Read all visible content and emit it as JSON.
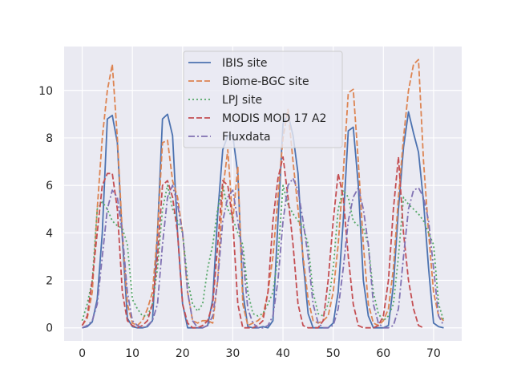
{
  "chart_data": {
    "type": "line",
    "title": "",
    "xlabel": "",
    "ylabel": "",
    "xlim": [
      -3.6,
      75.6
    ],
    "ylim": [
      -0.55,
      11.85
    ],
    "xticks": [
      0,
      10,
      20,
      30,
      40,
      50,
      60,
      70
    ],
    "yticks": [
      0,
      2,
      4,
      6,
      8,
      10
    ],
    "grid": true,
    "legend_position": "top-center",
    "background": "#eaeaf2",
    "series": [
      {
        "name": "IBIS site",
        "color": "#4c72b0",
        "dash": "solid",
        "x": [
          0,
          1,
          2,
          3,
          4,
          5,
          6,
          7,
          8,
          9,
          10,
          11,
          12,
          13,
          14,
          15,
          16,
          17,
          18,
          19,
          20,
          21,
          22,
          23,
          24,
          25,
          26,
          27,
          28,
          29,
          30,
          31,
          32,
          33,
          34,
          35,
          36,
          37,
          38,
          39,
          40,
          41,
          42,
          43,
          44,
          45,
          46,
          47,
          48,
          49,
          50,
          51,
          52,
          53,
          54,
          55,
          56,
          57,
          58,
          59,
          60,
          61,
          62,
          63,
          64,
          65,
          66,
          67,
          68,
          69,
          70,
          71,
          72
        ],
        "y": [
          0,
          0.05,
          0.25,
          1.2,
          4.0,
          8.8,
          8.95,
          7.8,
          3.8,
          0.4,
          0.05,
          0,
          0,
          0.05,
          0.3,
          4.0,
          8.8,
          9.0,
          8.1,
          4.0,
          1.0,
          0,
          0,
          0,
          0,
          0.1,
          1.2,
          4.8,
          7.5,
          8.1,
          8.1,
          6.5,
          1.5,
          0.05,
          0,
          0,
          0.05,
          0,
          0.3,
          4.5,
          8.6,
          9.0,
          8.1,
          6.5,
          2.8,
          0.6,
          0,
          0,
          0,
          0,
          0.2,
          1.5,
          4.5,
          8.3,
          8.45,
          6.0,
          2.0,
          0.5,
          0,
          0,
          0,
          0.1,
          1.8,
          5.0,
          7.6,
          9.1,
          8.2,
          7.4,
          5.3,
          2.5,
          0.2,
          0.05,
          0
        ]
      },
      {
        "name": "Biome-BGC site",
        "color": "#dd8452",
        "dash": "dashed",
        "x": [
          0,
          1,
          2,
          3,
          4,
          5,
          6,
          7,
          8,
          9,
          10,
          11,
          12,
          13,
          14,
          15,
          16,
          17,
          18,
          19,
          20,
          21,
          22,
          23,
          24,
          25,
          26,
          27,
          28,
          29,
          30,
          31,
          32,
          33,
          34,
          35,
          36,
          37,
          38,
          39,
          40,
          41,
          42,
          43,
          44,
          45,
          46,
          47,
          48,
          49,
          50,
          51,
          52,
          53,
          54,
          55,
          56,
          57,
          58,
          59,
          60,
          61,
          62,
          63,
          64,
          65,
          66,
          67,
          68,
          69,
          70,
          71,
          72
        ],
        "y": [
          0.1,
          0.4,
          1.5,
          5.0,
          8.0,
          10.0,
          11.1,
          8.0,
          4.0,
          1.0,
          0.2,
          0.1,
          0.3,
          0.8,
          1.5,
          4.0,
          7.8,
          7.9,
          6.2,
          5.5,
          4.0,
          1.5,
          0.3,
          0.2,
          0.3,
          0.3,
          0.2,
          2.0,
          5.8,
          7.5,
          4.5,
          6.8,
          1.0,
          0.1,
          0.2,
          0.3,
          0.5,
          1.5,
          3.0,
          5.5,
          8.0,
          9.2,
          7.0,
          5.0,
          3.0,
          1.2,
          0.3,
          0.2,
          0.3,
          0.5,
          1.5,
          3.5,
          6.5,
          9.9,
          10.05,
          7.0,
          3.5,
          1.0,
          0.2,
          0.1,
          0.3,
          0.8,
          2.5,
          5.5,
          8.0,
          10.0,
          11.1,
          11.3,
          7.0,
          4.0,
          1.5,
          0.5,
          0.3
        ]
      },
      {
        "name": "LPJ site",
        "color": "#55a868",
        "dash": "dotted",
        "x": [
          0,
          1,
          2,
          3,
          4,
          5,
          6,
          7,
          8,
          9,
          10,
          11,
          12,
          13,
          14,
          15,
          16,
          17,
          18,
          19,
          20,
          21,
          22,
          23,
          24,
          25,
          26,
          27,
          28,
          29,
          30,
          31,
          32,
          33,
          34,
          35,
          36,
          37,
          38,
          39,
          40,
          41,
          42,
          43,
          44,
          45,
          46,
          47,
          48,
          49,
          50,
          51,
          52,
          53,
          54,
          55,
          56,
          57,
          58,
          59,
          60,
          61,
          62,
          63,
          64,
          65,
          66,
          67,
          68,
          69,
          70,
          71,
          72
        ],
        "y": [
          0.3,
          1.0,
          2.0,
          5.0,
          5.3,
          5.0,
          4.5,
          4.3,
          4.2,
          3.5,
          1.2,
          0.8,
          0.5,
          0.5,
          1.0,
          2.5,
          5.0,
          6.0,
          5.0,
          4.5,
          4.0,
          2.0,
          1.0,
          0.7,
          1.0,
          2.5,
          3.5,
          5.0,
          6.0,
          5.0,
          4.6,
          4.0,
          3.5,
          1.5,
          0.6,
          0.5,
          0.6,
          1.0,
          1.5,
          3.0,
          6.0,
          5.2,
          4.8,
          4.5,
          4.3,
          3.5,
          1.5,
          0.6,
          0.5,
          1.0,
          2.5,
          5.0,
          5.8,
          5.5,
          4.5,
          4.3,
          4.2,
          3.5,
          1.5,
          0.6,
          0.3,
          0.5,
          1.0,
          3.0,
          5.5,
          5.2,
          5.0,
          4.8,
          4.5,
          4.0,
          3.5,
          1.0,
          0.3
        ]
      },
      {
        "name": "MODIS MOD 17 A2",
        "color": "#c44e52",
        "dash": "dashed",
        "x": [
          0,
          1,
          2,
          3,
          4,
          5,
          6,
          7,
          8,
          9,
          10,
          11,
          12,
          13,
          14,
          15,
          16,
          17,
          18,
          19,
          20,
          21,
          22,
          23,
          24,
          25,
          26,
          27,
          28,
          29,
          30,
          31,
          32,
          33,
          34,
          35,
          36,
          37,
          38,
          39,
          40,
          41,
          42,
          43,
          44,
          45,
          46,
          47,
          48,
          49,
          50,
          51,
          52,
          53,
          54,
          55,
          56,
          57,
          58,
          59,
          60,
          61,
          62,
          63,
          64,
          65,
          66,
          67,
          68
        ],
        "y": [
          0.1,
          0.5,
          2.0,
          4.0,
          6.0,
          6.5,
          6.5,
          5.0,
          1.5,
          0.3,
          0.1,
          0,
          0.1,
          0.3,
          1.0,
          3.0,
          6.0,
          6.2,
          5.5,
          4.0,
          1.0,
          0.2,
          0,
          0,
          0.1,
          0.3,
          1.0,
          3.5,
          6.2,
          6.0,
          4.5,
          1.0,
          0,
          0,
          0,
          0.1,
          0.3,
          1.5,
          4.5,
          6.3,
          7.2,
          5.5,
          3.5,
          1.0,
          0.1,
          0,
          0,
          0,
          0.3,
          2.0,
          4.5,
          6.5,
          5.5,
          3.0,
          1.0,
          0.1,
          0,
          0,
          0,
          0.1,
          0.5,
          2.0,
          5.0,
          7.2,
          4.0,
          2.0,
          0.8,
          0.1,
          0
        ]
      },
      {
        "name": "Fluxdata",
        "color": "#8172b3",
        "dash": "dashdot",
        "x": [
          0,
          1,
          2,
          3,
          4,
          5,
          6,
          7,
          8,
          9,
          10,
          11,
          12,
          13,
          14,
          15,
          16,
          17,
          18,
          19,
          20,
          21,
          22,
          23,
          24,
          25,
          26,
          27,
          28,
          29,
          30,
          31,
          32,
          33,
          34,
          35,
          36,
          37,
          38,
          39,
          40,
          41,
          42,
          43,
          44,
          45,
          46,
          47,
          48,
          49,
          50,
          51,
          52,
          53,
          54,
          55,
          56,
          57,
          58,
          59,
          60,
          61,
          62,
          63,
          64,
          65,
          66,
          67,
          68,
          69,
          70,
          71,
          72
        ],
        "y": [
          0,
          0.1,
          0.3,
          1.0,
          3.0,
          5.0,
          5.8,
          5.5,
          4.0,
          1.5,
          0.3,
          0.1,
          0,
          0.1,
          0.3,
          1.0,
          3.5,
          5.5,
          6.0,
          5.2,
          4.0,
          1.5,
          0.3,
          0,
          0,
          0.1,
          0.5,
          2.0,
          4.5,
          5.5,
          5.8,
          4.5,
          3.0,
          0.8,
          0.2,
          0,
          0,
          0.1,
          0.5,
          2.0,
          4.5,
          6.0,
          6.3,
          5.8,
          4.5,
          3.0,
          1.0,
          0.2,
          0,
          0,
          0.1,
          0.8,
          2.5,
          4.5,
          5.5,
          5.9,
          5.0,
          3.5,
          1.0,
          0.2,
          0,
          0,
          0.1,
          0.8,
          3.0,
          5.0,
          5.8,
          5.9,
          5.5,
          4.5,
          2.5,
          0.5,
          0.1
        ]
      }
    ]
  }
}
